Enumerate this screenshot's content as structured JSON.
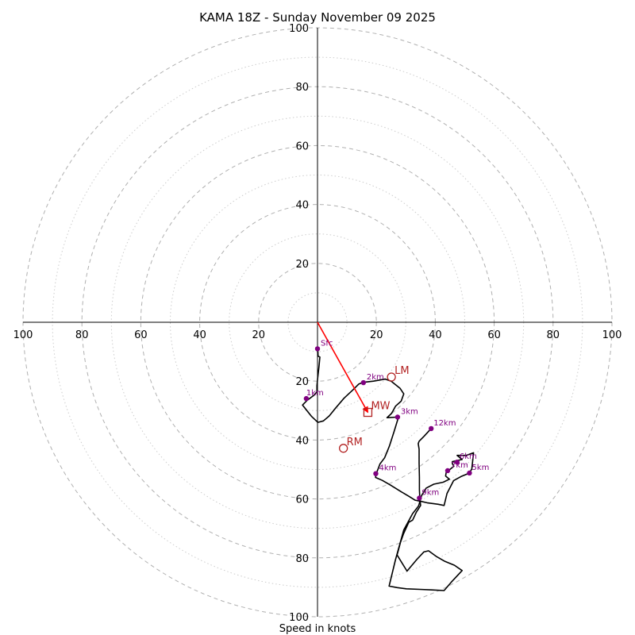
{
  "chart_data": {
    "type": "hodograph",
    "title": "KAMA 18Z - Sunday November 09 2025",
    "xlabel": "Speed in knots",
    "axis_range": [
      -100,
      100
    ],
    "major_ring_step": 20,
    "minor_ring_step": 10,
    "x_ticks": [
      {
        "value": -100,
        "label": "100"
      },
      {
        "value": -80,
        "label": "80"
      },
      {
        "value": -60,
        "label": "60"
      },
      {
        "value": -40,
        "label": "40"
      },
      {
        "value": -20,
        "label": "20"
      },
      {
        "value": 20,
        "label": "20"
      },
      {
        "value": 40,
        "label": "40"
      },
      {
        "value": 60,
        "label": "60"
      },
      {
        "value": 80,
        "label": "80"
      },
      {
        "value": 100,
        "label": "100"
      }
    ],
    "y_ticks_up": [
      {
        "value": 20,
        "label": "20"
      },
      {
        "value": 40,
        "label": "40"
      },
      {
        "value": 60,
        "label": "60"
      },
      {
        "value": 80,
        "label": "80"
      },
      {
        "value": 100,
        "label": "100"
      }
    ],
    "y_ticks_down": [
      {
        "value": -20,
        "label": "20"
      },
      {
        "value": -40,
        "label": "40"
      },
      {
        "value": -60,
        "label": "60"
      },
      {
        "value": -80,
        "label": "80"
      },
      {
        "value": -100,
        "label": "100"
      }
    ],
    "trace": [
      [
        0.1,
        -9.2
      ],
      [
        0.2,
        -11.5
      ],
      [
        0.8,
        -11.8
      ],
      [
        0.5,
        -15
      ],
      [
        0,
        -19.5
      ],
      [
        -0.2,
        -21.5
      ],
      [
        -0.2,
        -23.6
      ],
      [
        -1.2,
        -24.8
      ],
      [
        -3.5,
        -26.5
      ],
      [
        -5.1,
        -28.1
      ],
      [
        -2,
        -32
      ],
      [
        0.1,
        -34
      ],
      [
        2,
        -33.5
      ],
      [
        4,
        -31.8
      ],
      [
        6,
        -29.3
      ],
      [
        9,
        -25.8
      ],
      [
        12,
        -23
      ],
      [
        14,
        -21
      ],
      [
        15.5,
        -20.4
      ],
      [
        19,
        -20
      ],
      [
        23,
        -19.3
      ],
      [
        25,
        -20
      ],
      [
        28,
        -22.4
      ],
      [
        29.3,
        -24.3
      ],
      [
        28.4,
        -26.8
      ],
      [
        26.5,
        -28.5
      ],
      [
        25.7,
        -30
      ],
      [
        25.1,
        -31
      ],
      [
        23.6,
        -32.4
      ],
      [
        27,
        -32.2
      ],
      [
        27.4,
        -32.5
      ],
      [
        26,
        -37.1
      ],
      [
        24.4,
        -42.1
      ],
      [
        22.8,
        -46
      ],
      [
        21.2,
        -48.1
      ],
      [
        20,
        -51.3
      ],
      [
        19.7,
        -52.7
      ],
      [
        22,
        -53.7
      ],
      [
        24.8,
        -55.3
      ],
      [
        28.5,
        -57.6
      ],
      [
        30.9,
        -59
      ],
      [
        33.1,
        -60.4
      ],
      [
        34.6,
        -60.7
      ],
      [
        37.2,
        -61.3
      ],
      [
        41,
        -61.8
      ],
      [
        43,
        -62.2
      ],
      [
        44,
        -58.1
      ],
      [
        46.2,
        -53.8
      ],
      [
        48.7,
        -52.4
      ],
      [
        51.6,
        -51.2
      ],
      [
        52.4,
        -49.8
      ],
      [
        53,
        -44.3
      ],
      [
        50.5,
        -45.2
      ],
      [
        47.4,
        -45.2
      ],
      [
        49.1,
        -46.6
      ],
      [
        45.8,
        -47.3
      ],
      [
        45.8,
        -48
      ],
      [
        46.3,
        -48.9
      ],
      [
        43.7,
        -51
      ],
      [
        43.5,
        -52.2
      ],
      [
        44.8,
        -53.3
      ],
      [
        42.7,
        -54.3
      ],
      [
        39.5,
        -55
      ],
      [
        36.9,
        -56.3
      ],
      [
        35.4,
        -58.8
      ],
      [
        34.8,
        -60.3
      ],
      [
        35,
        -62.2
      ],
      [
        34.4,
        -63.2
      ],
      [
        33.6,
        -64.4
      ],
      [
        32.3,
        -67.2
      ],
      [
        31,
        -67.9
      ],
      [
        29.2,
        -71.9
      ],
      [
        28.2,
        -74.7
      ],
      [
        27.4,
        -77.6
      ],
      [
        27,
        -79
      ],
      [
        30.4,
        -84.5
      ],
      [
        33.7,
        -80.6
      ],
      [
        36.1,
        -78
      ],
      [
        37.7,
        -77.6
      ],
      [
        40.3,
        -79.5
      ],
      [
        43.3,
        -81.2
      ],
      [
        46.5,
        -82.5
      ],
      [
        49.1,
        -84.3
      ],
      [
        45.4,
        -88.3
      ],
      [
        43,
        -91.1
      ],
      [
        38.8,
        -90.9
      ],
      [
        34.7,
        -90.7
      ],
      [
        30.2,
        -90.5
      ],
      [
        27.1,
        -90.1
      ],
      [
        24.3,
        -89.6
      ],
      [
        26.5,
        -80.6
      ],
      [
        29.3,
        -70.5
      ],
      [
        32.3,
        -65
      ],
      [
        34.3,
        -62.4
      ],
      [
        34.8,
        -60.8
      ],
      [
        34.6,
        -56.9
      ],
      [
        34.6,
        -52.7
      ],
      [
        34.5,
        -47.9
      ],
      [
        34.5,
        -44.5
      ],
      [
        34.5,
        -43.1
      ],
      [
        34.2,
        -41.2
      ],
      [
        34.5,
        -40.4
      ],
      [
        36.2,
        -38.7
      ],
      [
        38.5,
        -36.2
      ]
    ],
    "levels": [
      {
        "label": "Sfc",
        "u": 0,
        "v": -9,
        "label_dx": 4,
        "label_dy": -4
      },
      {
        "label": "1km",
        "u": -3.8,
        "v": -25.9,
        "label_dx": 0,
        "label_dy": -4
      },
      {
        "label": "2km",
        "u": 15.6,
        "v": -20.5,
        "label_dx": 4,
        "label_dy": -4
      },
      {
        "label": "3km",
        "u": 27.2,
        "v": -32.2,
        "label_dx": 4,
        "label_dy": -4
      },
      {
        "label": "4km",
        "u": 19.8,
        "v": -51.4,
        "label_dx": 4,
        "label_dy": -4
      },
      {
        "label": "5km",
        "u": 51.6,
        "v": -51.2,
        "label_dx": 3,
        "label_dy": -4
      },
      {
        "label": "6km",
        "u": 47.4,
        "v": -47.5,
        "label_dx": 3,
        "label_dy": -4
      },
      {
        "label": "7km",
        "u": 44.2,
        "v": -50.4,
        "label_dx": 4,
        "label_dy": -4
      },
      {
        "label": "9km",
        "u": 34.6,
        "v": -59.7,
        "label_dx": 3,
        "label_dy": -4
      },
      {
        "label": "12km",
        "u": 38.6,
        "v": -36.1,
        "label_dx": 3,
        "label_dy": -4
      }
    ],
    "storm_motion": {
      "mean_wind": {
        "label": "MW",
        "u": 17.1,
        "v": -30.6,
        "marker": "square"
      },
      "left_mover": {
        "label": "LM",
        "u": 25.1,
        "v": -18.6,
        "marker": "circle"
      },
      "right_mover": {
        "label": "RM",
        "u": 8.8,
        "v": -42.8,
        "marker": "circle"
      },
      "vector_to": "mean_wind"
    },
    "colors": {
      "trace": "#000000",
      "levels": "#800080",
      "motion": "#b22222",
      "vector": "#ff0000"
    }
  }
}
